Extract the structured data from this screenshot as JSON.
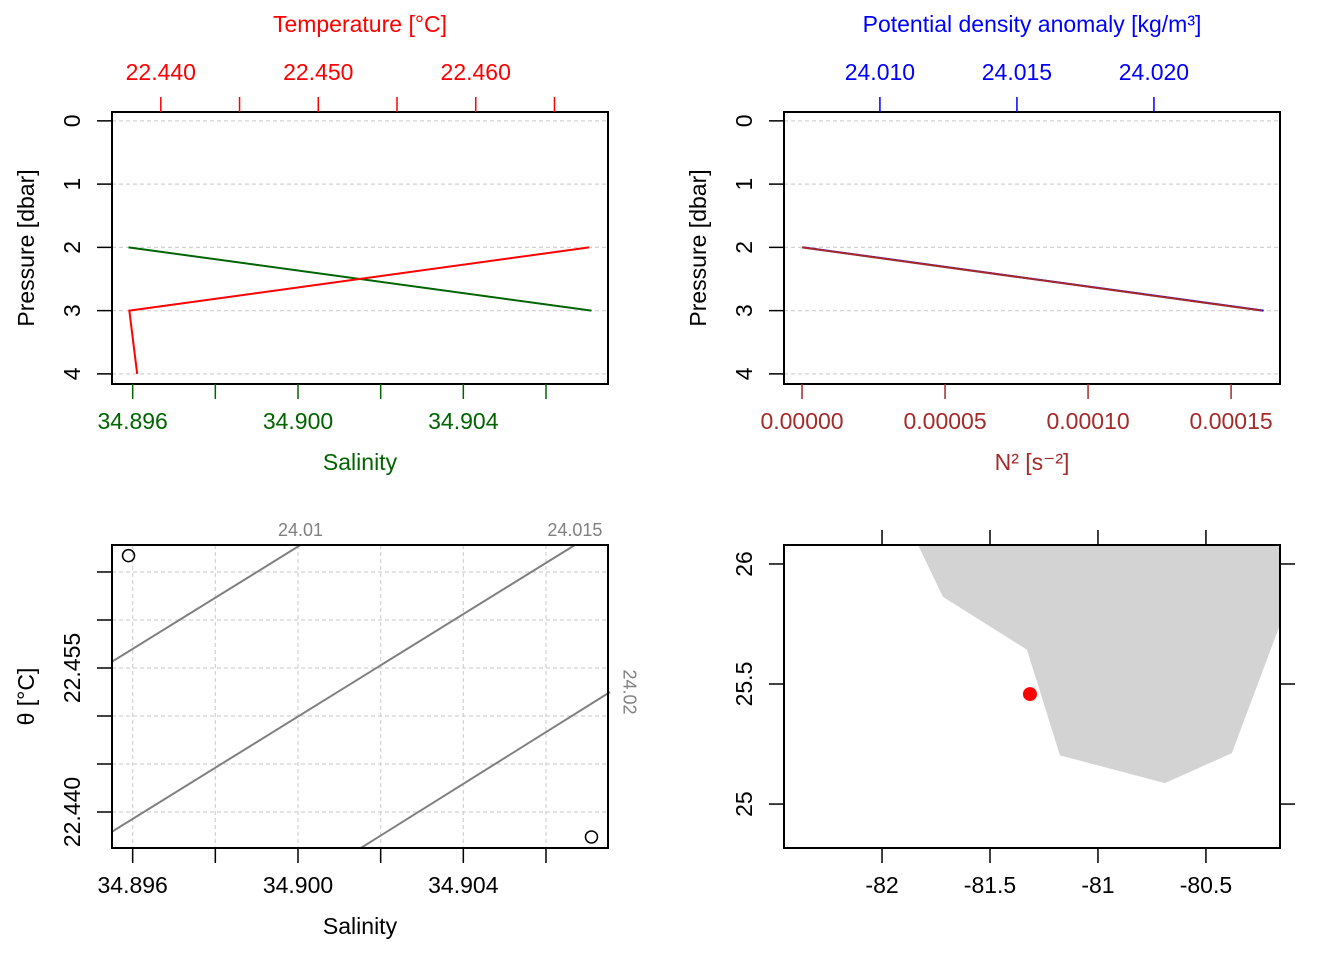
{
  "chart_data": [
    {
      "type": "profile",
      "x2label": "Temperature [°C]",
      "xlabel": "Salinity",
      "ylabel": "Pressure [dbar]",
      "pressure": [
        2,
        3,
        4
      ],
      "series": [
        {
          "axis": "x",
          "color": "#006400",
          "values": [
            34.8959,
            34.9071,
            null
          ]
        },
        {
          "axis": "x2",
          "color": "#ff0000",
          "values": [
            22.4672,
            22.438,
            22.4385
          ]
        }
      ],
      "xlim": [
        34.8955,
        34.9075
      ],
      "xcolor": "#006400",
      "xticks": [
        {
          "value": 34.896,
          "label": "34.896"
        },
        {
          "value": 34.9,
          "label": "34.900"
        },
        {
          "value": 34.904,
          "label": "34.904"
        }
      ],
      "xminor": [
        34.898,
        34.902,
        34.906
      ],
      "x2lim": [
        22.4369,
        22.4684
      ],
      "x2color": "#ff0000",
      "x2ticks": [
        {
          "value": 22.44,
          "label": "22.440"
        },
        {
          "value": 22.45,
          "label": "22.450"
        },
        {
          "value": 22.46,
          "label": "22.460"
        }
      ],
      "x2minor": [
        22.445,
        22.455,
        22.465
      ],
      "ylim": [
        4.16,
        -0.14
      ],
      "yticks": [
        0,
        1,
        2,
        3,
        4
      ],
      "grid": true
    },
    {
      "type": "profile",
      "x2label": "Potential density anomaly [kg/m³]",
      "xlabel": "N² [s⁻²]",
      "ylabel": "Pressure [dbar]",
      "pressure": [
        2,
        3
      ],
      "series": [
        {
          "axis": "x2",
          "color": "#0000ff",
          "values": [
            24.0072,
            24.024
          ]
        },
        {
          "axis": "x",
          "color": "#a52a2a",
          "values": [
            0,
            0.0001608
          ]
        }
      ],
      "xlim": [
        -6.3e-06,
        0.0001671
      ],
      "xcolor": "#a52a2a",
      "xticks": [
        {
          "value": 0,
          "label": "0.00000"
        },
        {
          "value": 5e-05,
          "label": "0.00005"
        },
        {
          "value": 0.0001,
          "label": "0.00010"
        },
        {
          "value": 0.00015,
          "label": "0.00015"
        }
      ],
      "x2lim": [
        24.0065,
        24.0246
      ],
      "x2color": "#0000ff",
      "x2ticks": [
        {
          "value": 24.01,
          "label": "24.010"
        },
        {
          "value": 24.015,
          "label": "24.015"
        },
        {
          "value": 24.02,
          "label": "24.020"
        }
      ],
      "ylim": [
        4.16,
        -0.14
      ],
      "yticks": [
        0,
        1,
        2,
        3,
        4
      ],
      "grid": true
    },
    {
      "type": "ts",
      "xlabel": "Salinity",
      "ylabel": "θ [°C]",
      "x": [
        34.8959,
        34.9071
      ],
      "y": [
        22.4667,
        22.4374
      ],
      "xlim": [
        34.8955,
        34.9075
      ],
      "xticks": [
        {
          "value": 34.896,
          "label": "34.896"
        },
        {
          "value": 34.9,
          "label": "34.900"
        },
        {
          "value": 34.904,
          "label": "34.904"
        }
      ],
      "xminor": [
        34.898,
        34.902,
        34.906
      ],
      "ylim": [
        22.43625,
        22.46781
      ],
      "yticks": [
        {
          "value": 22.44,
          "label": "22.440"
        },
        {
          "value": 22.455,
          "label": "22.455"
        }
      ],
      "yminor": [
        22.445,
        22.45,
        22.46,
        22.465
      ],
      "grid": true,
      "contour_color": "#808080",
      "contours": [
        {
          "level": 24.01,
          "x": [
            34.89549,
            34.90006
          ],
          "y": [
            22.45563,
            22.46781
          ]
        },
        {
          "level": 24.015,
          "x": [
            34.89549,
            34.9067
          ],
          "y": [
            22.43792,
            22.46781
          ]
        },
        {
          "level": 24.02,
          "x": [
            34.90152,
            34.90755
          ],
          "y": [
            22.43625,
            22.4525
          ]
        }
      ]
    },
    {
      "type": "map",
      "xlim": [
        -82.454,
        -80.157
      ],
      "xticks": [
        -82,
        -81.5,
        -81,
        -80.5
      ],
      "ylim": [
        24.817,
        26.079
      ],
      "yticks": [
        25,
        25.5,
        26
      ],
      "land_color": "#d3d3d3",
      "coastline": {
        "lon": [
          -81.833,
          -81.718,
          -81.329,
          -81.176,
          -80.69,
          -80.38,
          -80.157,
          -80.157
        ],
        "lat": [
          26.079,
          25.863,
          25.643,
          25.203,
          25.087,
          25.212,
          25.747,
          26.079
        ]
      },
      "station": {
        "lon": -81.315,
        "lat": 25.458,
        "color": "#ff0000"
      }
    }
  ]
}
